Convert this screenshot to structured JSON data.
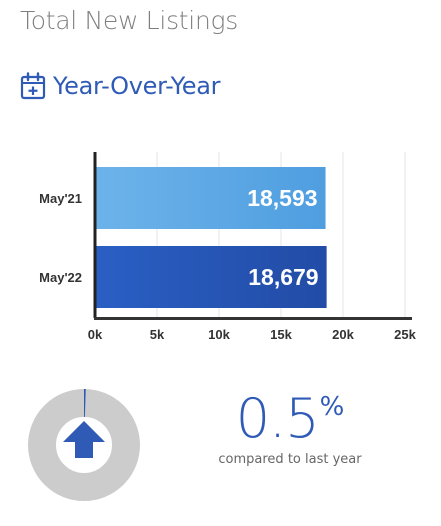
{
  "page": {
    "title": "Total New Listings",
    "section_title": "Year-Over-Year",
    "icon": "calendar-plus-icon"
  },
  "colors": {
    "title": "#7f7f7f",
    "accent": "#2f5bb7",
    "bar_may21": "#5aa7e3",
    "bar_may22": "#2653b8",
    "donut_track": "#cccccc",
    "arrow": "#2f5bb7"
  },
  "chart_data": {
    "type": "bar",
    "orientation": "horizontal",
    "categories": [
      "May'21",
      "May'22"
    ],
    "values": [
      18593,
      18679
    ],
    "value_labels": [
      "18,593",
      "18,679"
    ],
    "xlim": [
      0,
      25000
    ],
    "ticks": [
      0,
      5000,
      10000,
      15000,
      20000,
      25000
    ],
    "tick_labels": [
      "0k",
      "5k",
      "10k",
      "15k",
      "20k",
      "25k"
    ],
    "grid": true,
    "legend": "none"
  },
  "change": {
    "percent_value": "0.5",
    "percent_sign": "%",
    "caption": "compared to last year",
    "direction": "up",
    "direction_icon": "arrow-up-icon",
    "fraction": 0.005
  }
}
